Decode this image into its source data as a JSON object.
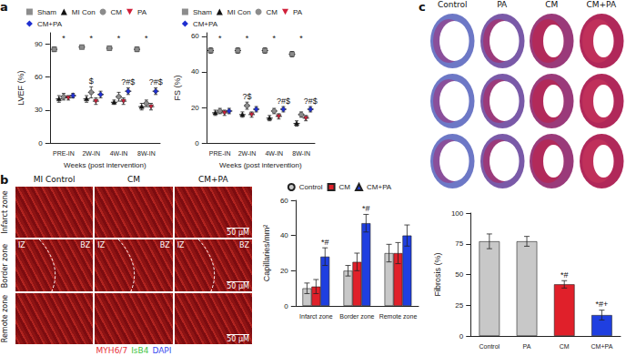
{
  "panel_labels": [
    "a",
    "b",
    "c"
  ],
  "chart_data": [
    {
      "type": "scatter",
      "y_label": "LVEF (%)",
      "x_label": "Weeks (post intervention)",
      "categories": [
        "PRE-IN",
        "2W-IN",
        "4W-IN",
        "8W-IN"
      ],
      "series": [
        {
          "name": "Sham",
          "color": "#8c8c8c",
          "marker": "square",
          "values": [
            85,
            87,
            86,
            85
          ],
          "errors": [
            2,
            1.5,
            1.5,
            2
          ]
        },
        {
          "name": "MI Con",
          "color": "#111111",
          "marker": "triangle",
          "values": [
            40,
            40,
            37,
            33
          ],
          "errors": [
            3,
            3,
            2,
            3
          ]
        },
        {
          "name": "CM",
          "color": "#8c8c8c",
          "marker": "circle",
          "values": [
            42,
            46,
            42,
            36
          ],
          "errors": [
            3,
            5,
            4,
            3
          ]
        },
        {
          "name": "PA",
          "color": "#d0203a",
          "marker": "triangle-down",
          "values": [
            41,
            38,
            38,
            33
          ],
          "errors": [
            2,
            3,
            3,
            3
          ]
        },
        {
          "name": "CM+PA",
          "color": "#1f2fd0",
          "marker": "diamond",
          "values": [
            43,
            44,
            47,
            47
          ],
          "errors": [
            2,
            3,
            3,
            3
          ]
        }
      ],
      "ylim": [
        0,
        100
      ],
      "yticks": [
        0,
        30,
        60,
        90
      ],
      "grid": false,
      "legend": "top",
      "annotations": [
        {
          "category": "PRE-IN",
          "text": "*"
        },
        {
          "category": "2W-IN",
          "text": "*"
        },
        {
          "category": "4W-IN",
          "text": "*"
        },
        {
          "category": "8W-IN",
          "text": "*"
        },
        {
          "category": "2W-IN",
          "series": "CM",
          "text": "$"
        },
        {
          "category": "4W-IN",
          "series": "CM+PA",
          "text": "?#$"
        },
        {
          "category": "8W-IN",
          "series": "CM+PA",
          "text": "?#$"
        }
      ]
    },
    {
      "type": "scatter",
      "y_label": "FS (%)",
      "x_label": "Weeks (post intervention)",
      "categories": [
        "PRE-IN",
        "2W-IN",
        "4W-IN",
        "8W-IN"
      ],
      "series": [
        {
          "name": "Sham",
          "color": "#8c8c8c",
          "marker": "square",
          "values": [
            52,
            52,
            52,
            50
          ],
          "errors": [
            1.5,
            1.5,
            1.5,
            1.5
          ]
        },
        {
          "name": "MI Con",
          "color": "#111111",
          "marker": "triangle",
          "values": [
            17,
            16,
            14,
            11
          ],
          "errors": [
            1.5,
            1.5,
            1.5,
            1.5
          ]
        },
        {
          "name": "CM",
          "color": "#8c8c8c",
          "marker": "circle",
          "values": [
            18,
            21,
            18,
            16
          ],
          "errors": [
            1.5,
            2,
            1.5,
            1.5
          ]
        },
        {
          "name": "PA",
          "color": "#d0203a",
          "marker": "triangle-down",
          "values": [
            17,
            16,
            15,
            14
          ],
          "errors": [
            1.5,
            1.5,
            1.5,
            1.5
          ]
        },
        {
          "name": "CM+PA",
          "color": "#1f2fd0",
          "marker": "diamond",
          "values": [
            18,
            19,
            19,
            19
          ],
          "errors": [
            1.5,
            1.5,
            1.5,
            1.5
          ]
        }
      ],
      "ylim": [
        0,
        62
      ],
      "yticks": [
        0,
        20,
        40,
        60
      ],
      "grid": false,
      "legend": "top",
      "annotations": [
        {
          "category": "PRE-IN",
          "text": "*"
        },
        {
          "category": "2W-IN",
          "text": "*"
        },
        {
          "category": "4W-IN",
          "text": "*"
        },
        {
          "category": "8W-IN",
          "text": "*"
        },
        {
          "category": "2W-IN",
          "series": "CM",
          "text": "?$"
        },
        {
          "category": "4W-IN",
          "series": "CM+PA",
          "text": "?#$"
        },
        {
          "category": "8W-IN",
          "series": "CM+PA",
          "text": "?#$"
        }
      ]
    },
    {
      "type": "bar",
      "y_label": "Capillaries/mm²",
      "categories": [
        "Infarct zone",
        "Border zone",
        "Remote zone"
      ],
      "series": [
        {
          "name": "Control",
          "color": "#c8c8c8",
          "marker": "circle",
          "values": [
            10,
            20,
            30
          ],
          "errors": [
            3,
            3,
            5
          ]
        },
        {
          "name": "CM",
          "color": "#e0202a",
          "marker": "square",
          "values": [
            11,
            25,
            30
          ],
          "errors": [
            4,
            5,
            6
          ]
        },
        {
          "name": "CM+PA",
          "color": "#1f3fe0",
          "marker": "triangle",
          "values": [
            28,
            47,
            40
          ],
          "errors": [
            5,
            5,
            6
          ]
        }
      ],
      "ylim": [
        0,
        60
      ],
      "yticks": [
        0,
        20,
        40,
        60
      ],
      "grid": false,
      "legend": "top",
      "annotations": [
        {
          "category": "Infarct zone",
          "series": "CM+PA",
          "text": "*#"
        },
        {
          "category": "Border zone",
          "series": "CM+PA",
          "text": "*#"
        }
      ]
    },
    {
      "type": "bar",
      "y_label": "Fibrosis (%)",
      "categories": [
        "Control",
        "PA",
        "CM",
        "CM+PA"
      ],
      "values": [
        77,
        77,
        42,
        17
      ],
      "errors": [
        6,
        4,
        3,
        4
      ],
      "colors": [
        "#c8c8c8",
        "#c8c8c8",
        "#e0202a",
        "#1f3fe0"
      ],
      "ylim": [
        0,
        100
      ],
      "yticks": [
        0,
        25,
        50,
        75,
        100
      ],
      "grid": false,
      "annotations": [
        {
          "category": "CM",
          "text": "*#"
        },
        {
          "category": "CM+PA",
          "text": "*#+"
        }
      ]
    }
  ],
  "images_b": {
    "columns": [
      "MI Control",
      "CM",
      "CM+PA"
    ],
    "rows": [
      "Infarct zone",
      "Border zone",
      "Remote zone"
    ],
    "zone_marks": [
      "IZ",
      "BZ"
    ],
    "scale_bar": "50 µM",
    "stains": [
      {
        "text": "MYH6/7",
        "color": "#e8303a"
      },
      {
        "text": "IsB4",
        "color": "#3ec43e"
      },
      {
        "text": "DAPI",
        "color": "#3b4cf0"
      }
    ]
  },
  "images_c": {
    "columns": [
      "Control",
      "PA",
      "CM",
      "CM+PA"
    ]
  }
}
